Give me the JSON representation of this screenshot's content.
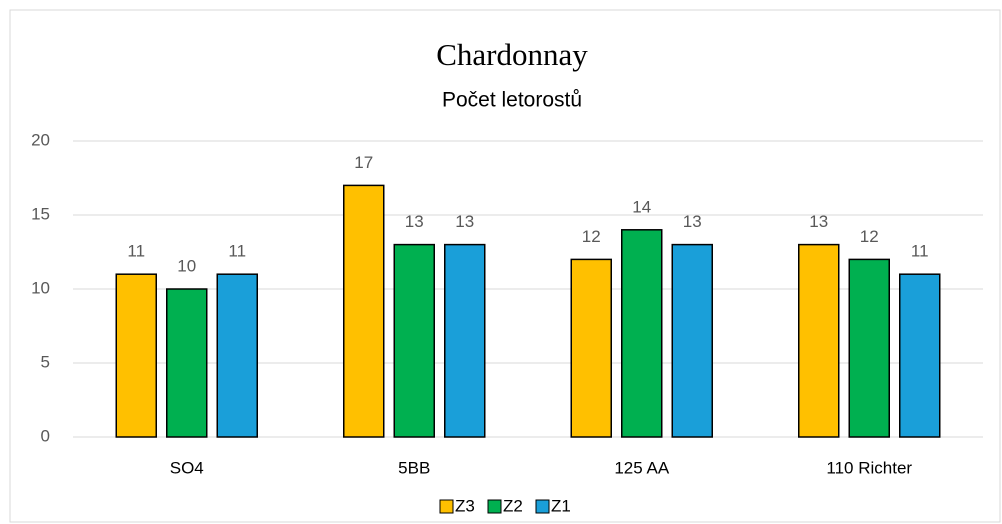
{
  "chart_data": {
    "type": "bar",
    "title": "Chardonnay",
    "subtitle": "Počet letorostů",
    "categories": [
      "SO4",
      "5BB",
      "125 AA",
      "110 Richter"
    ],
    "series": [
      {
        "name": "Z3",
        "color": "#ffc000",
        "values": [
          11,
          17,
          12,
          13
        ]
      },
      {
        "name": "Z2",
        "color": "#00b050",
        "values": [
          10,
          13,
          14,
          12
        ]
      },
      {
        "name": "Z1",
        "color": "#1a9fd9",
        "values": [
          11,
          13,
          13,
          11
        ]
      }
    ],
    "ylim": [
      0,
      20
    ],
    "yticks": [
      0,
      5,
      10,
      15,
      20
    ],
    "grid": true,
    "legend": "bottom"
  }
}
